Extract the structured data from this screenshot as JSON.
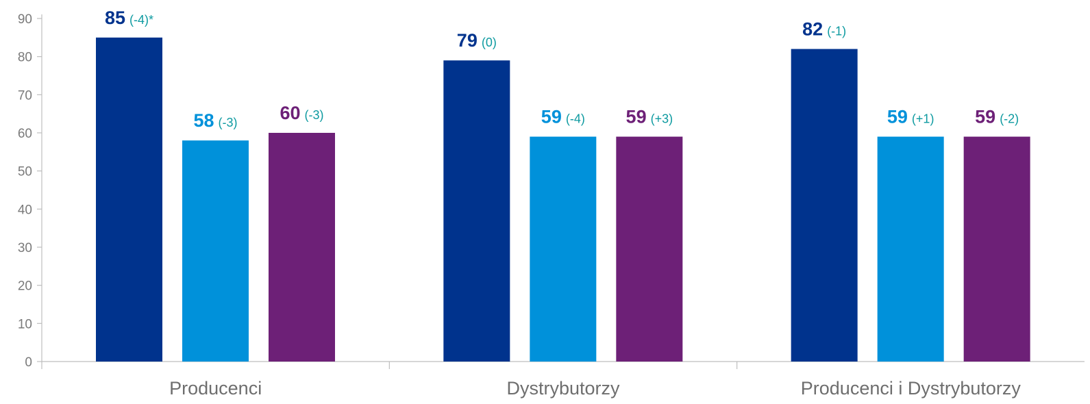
{
  "chart_data": {
    "type": "bar",
    "title": "",
    "xlabel": "",
    "ylabel": "",
    "ylim": [
      0,
      90
    ],
    "y_ticks": [
      0,
      10,
      20,
      30,
      40,
      50,
      60,
      70,
      80,
      90
    ],
    "grid": false,
    "legend": "none",
    "categories": [
      "Producenci",
      "Dystrybutorzy",
      "Producenci i Dystrybutorzy"
    ],
    "series": [
      {
        "color": "#00338d",
        "values": [
          85,
          79,
          82
        ],
        "labels": [
          "85",
          "79",
          "82"
        ],
        "deltas": [
          "(-4)*",
          "(0)",
          "(-1)"
        ]
      },
      {
        "color": "#0091da",
        "values": [
          58,
          59,
          59
        ],
        "labels": [
          "58",
          "59",
          "59"
        ],
        "deltas": [
          "(-3)",
          "(-4)",
          "(+1)"
        ]
      },
      {
        "color": "#6d2077",
        "values": [
          60,
          59,
          59
        ],
        "labels": [
          "60",
          "59",
          "59"
        ],
        "deltas": [
          "(-3)",
          "(+3)",
          "(-2)"
        ]
      }
    ],
    "delta_color": "#0d9aa0"
  }
}
